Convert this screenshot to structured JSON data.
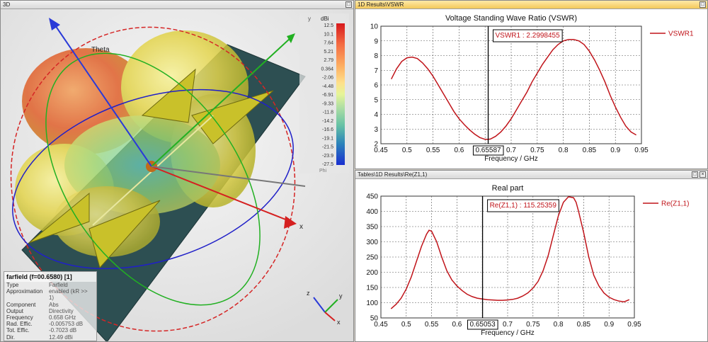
{
  "left_pane": {
    "title": "3D",
    "theta_label": "Theta",
    "x_axis_label": "x",
    "triad": {
      "x": "x",
      "y": "y",
      "z": "z"
    },
    "colorbar": {
      "axis_letter": "y",
      "unit": "dBi",
      "ticks": [
        "12.5",
        "10.1",
        "7.64",
        "5.21",
        "2.79",
        "0.364",
        "-2.06",
        "-4.48",
        "-6.91",
        "-9.33",
        "-11.8",
        "-14.2",
        "-16.6",
        "-19.1",
        "-21.5",
        "-23.9",
        "-27.5"
      ],
      "bottom_label": "Phi",
      "colors": [
        "#d7191c",
        "#f4561d",
        "#fc8d59",
        "#fdae61",
        "#fee08b",
        "#e6f598",
        "#abdda4",
        "#66c2a5",
        "#2ca0c8",
        "#2b6bd6",
        "#1a2fd0"
      ]
    },
    "info": {
      "title": "farfield (f=00.6580) [1]",
      "rows": [
        {
          "k": "Type",
          "v": "Farfield"
        },
        {
          "k": "Approximation",
          "v": "enabled (kR >> 1)"
        },
        {
          "k": "Component",
          "v": "Abs"
        },
        {
          "k": "Output",
          "v": "Directivity"
        },
        {
          "k": "Frequency",
          "v": "0.658 GHz"
        },
        {
          "k": "Rad. Effic.",
          "v": "-0.005753 dB"
        },
        {
          "k": "Tot. Effic.",
          "v": "-0.7023 dB"
        },
        {
          "k": "Dir.",
          "v": "12.49 dBi"
        }
      ]
    }
  },
  "vswr_pane": {
    "title": "1D Results\\VSWR",
    "chart_data": {
      "type": "line",
      "title": "Voltage Standing Wave Ratio (VSWR)",
      "xlabel": "Frequency / GHz",
      "ylabel": "",
      "xlim": [
        0.45,
        0.95
      ],
      "ylim": [
        2,
        10
      ],
      "xticks": [
        "0.45",
        "0.5",
        "0.55",
        "0.6",
        "0.65",
        "0.7",
        "0.75",
        "0.8",
        "0.85",
        "0.9",
        "0.95"
      ],
      "yticks": [
        "2",
        "3",
        "4",
        "5",
        "6",
        "7",
        "8",
        "9",
        "10"
      ],
      "grid": true,
      "legend_position": "right",
      "series": [
        {
          "name": "VSWR1",
          "color": "#c0141a",
          "x": [
            0.47,
            0.48,
            0.49,
            0.5,
            0.51,
            0.52,
            0.53,
            0.54,
            0.55,
            0.56,
            0.57,
            0.58,
            0.59,
            0.6,
            0.61,
            0.62,
            0.63,
            0.64,
            0.65,
            0.656,
            0.66,
            0.67,
            0.68,
            0.69,
            0.7,
            0.71,
            0.72,
            0.73,
            0.74,
            0.75,
            0.76,
            0.77,
            0.78,
            0.79,
            0.8,
            0.81,
            0.82,
            0.83,
            0.84,
            0.85,
            0.86,
            0.87,
            0.88,
            0.89,
            0.9,
            0.91,
            0.92,
            0.93,
            0.94
          ],
          "y": [
            6.4,
            7.1,
            7.6,
            7.85,
            7.9,
            7.8,
            7.5,
            7.1,
            6.6,
            6.0,
            5.4,
            4.8,
            4.2,
            3.7,
            3.3,
            2.95,
            2.65,
            2.42,
            2.3,
            2.3,
            2.32,
            2.5,
            2.8,
            3.2,
            3.7,
            4.3,
            4.9,
            5.5,
            6.2,
            6.8,
            7.4,
            7.9,
            8.4,
            8.75,
            9.0,
            9.1,
            9.1,
            9.0,
            8.75,
            8.3,
            7.7,
            7.0,
            6.2,
            5.3,
            4.5,
            3.8,
            3.2,
            2.8,
            2.6
          ]
        }
      ],
      "annotation": {
        "text": "VSWR1 : 2.2998455",
        "x": 0.65587
      },
      "cursor_label": "0.65587"
    }
  },
  "re_pane": {
    "title": "Tables\\1D Results\\Re(Z1,1)",
    "chart_data": {
      "type": "line",
      "title": "Real part",
      "xlabel": "Frequency / GHz",
      "ylabel": "",
      "xlim": [
        0.45,
        0.95
      ],
      "ylim": [
        50,
        450
      ],
      "xticks": [
        "0.45",
        "0.5",
        "0.55",
        "0.6",
        "0.65",
        "0.7",
        "0.75",
        "0.8",
        "0.85",
        "0.9",
        "0.95"
      ],
      "yticks": [
        "50",
        "100",
        "150",
        "200",
        "250",
        "300",
        "350",
        "400",
        "450"
      ],
      "grid": true,
      "legend_position": "right",
      "series": [
        {
          "name": "Re(Z1,1)",
          "color": "#c0141a",
          "x": [
            0.47,
            0.48,
            0.49,
            0.5,
            0.51,
            0.52,
            0.53,
            0.54,
            0.545,
            0.55,
            0.56,
            0.57,
            0.58,
            0.59,
            0.6,
            0.61,
            0.62,
            0.63,
            0.64,
            0.65,
            0.66,
            0.67,
            0.68,
            0.69,
            0.7,
            0.71,
            0.72,
            0.73,
            0.74,
            0.75,
            0.76,
            0.77,
            0.78,
            0.79,
            0.8,
            0.81,
            0.82,
            0.83,
            0.835,
            0.84,
            0.85,
            0.86,
            0.87,
            0.88,
            0.89,
            0.9,
            0.91,
            0.92,
            0.93,
            0.94
          ],
          "y": [
            80,
            95,
            115,
            145,
            185,
            235,
            285,
            325,
            338,
            335,
            300,
            250,
            205,
            175,
            155,
            140,
            128,
            120,
            115,
            112,
            110,
            109,
            108,
            108,
            109,
            111,
            115,
            122,
            132,
            148,
            170,
            205,
            255,
            320,
            385,
            430,
            448,
            445,
            430,
            400,
            330,
            250,
            190,
            155,
            132,
            118,
            110,
            105,
            103,
            110
          ]
        }
      ],
      "annotation": {
        "text": "Re(Z1,1) : 115.25359",
        "x": 0.65053
      },
      "cursor_label": "0.65053"
    }
  }
}
